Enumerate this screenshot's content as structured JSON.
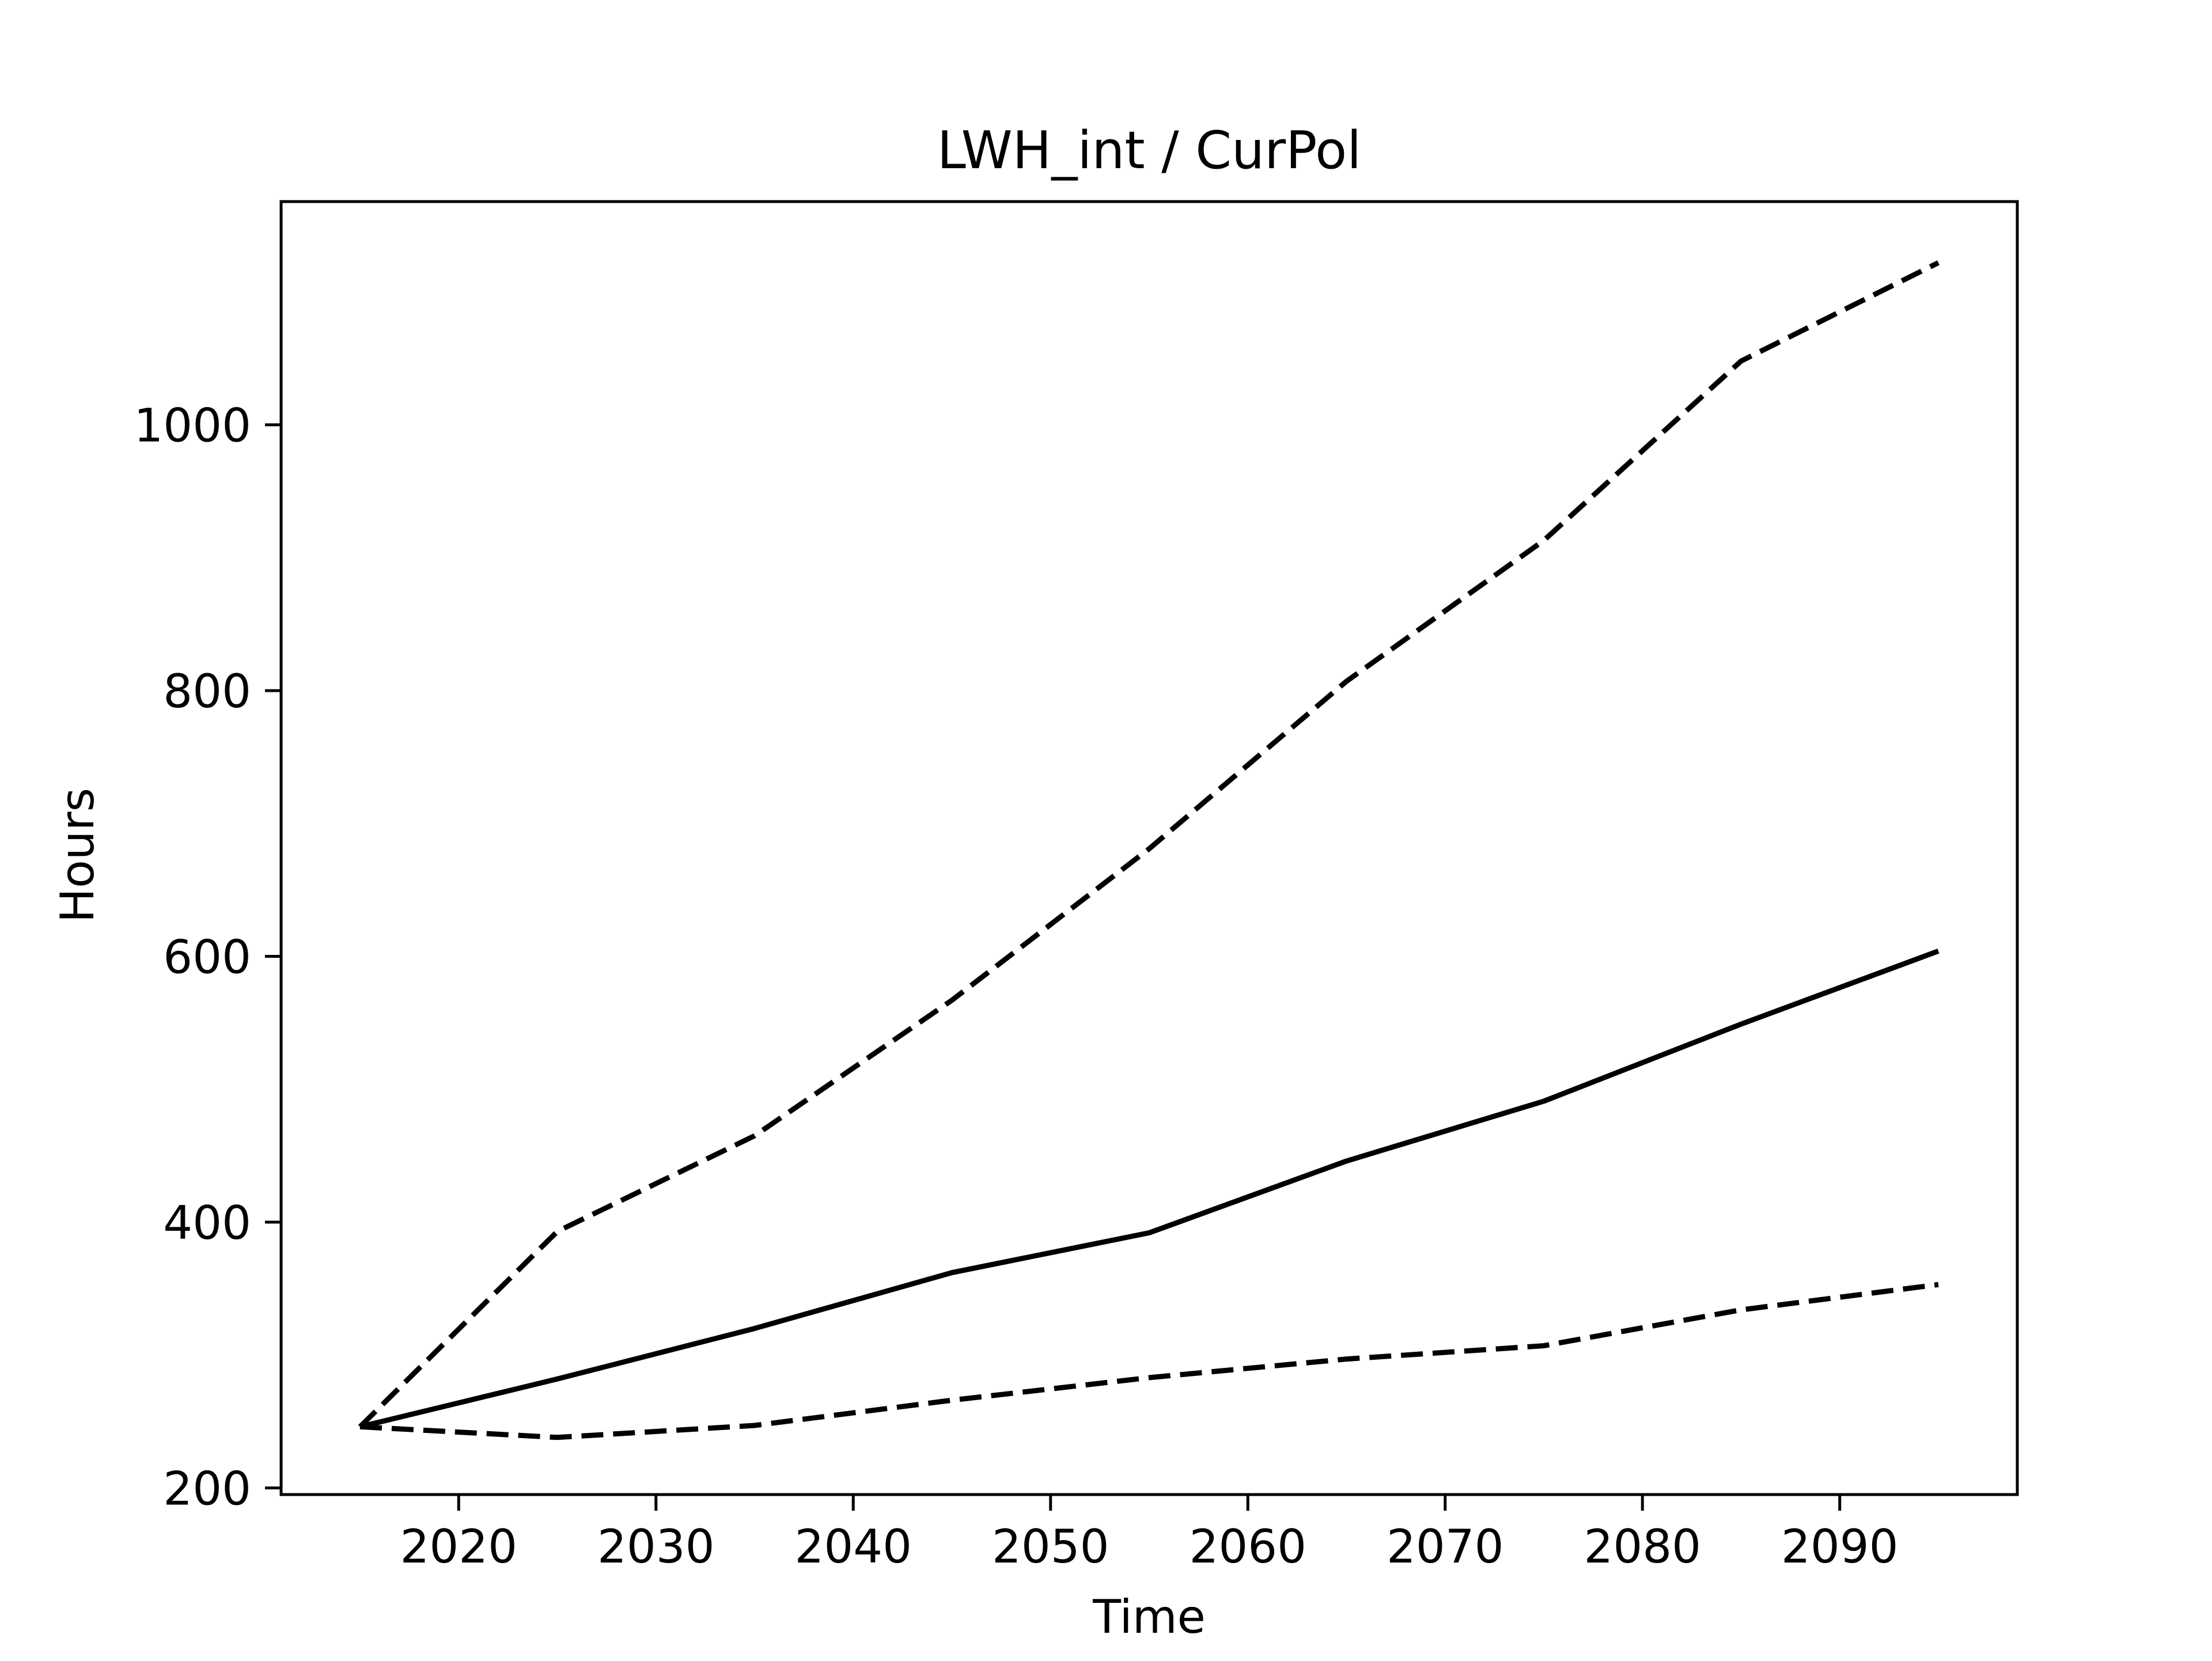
{
  "chart_data": {
    "type": "line",
    "title": "LWH_int / CurPol",
    "xlabel": "Time",
    "ylabel": "Hours",
    "xlim": [
      2011,
      2099
    ],
    "ylim": [
      195,
      1168
    ],
    "xticks": [
      2020,
      2030,
      2040,
      2050,
      2060,
      2070,
      2080,
      2090
    ],
    "yticks": [
      200,
      400,
      600,
      800,
      1000
    ],
    "grid": false,
    "legend": "none",
    "x": [
      2015,
      2025,
      2035,
      2045,
      2055,
      2065,
      2075,
      2085,
      2095
    ],
    "series": [
      {
        "style": "solid",
        "color": "#000000",
        "values": [
          246,
          282,
          320,
          362,
          392,
          446,
          491,
          549,
          604
        ]
      },
      {
        "style": "dashed",
        "color": "#000000",
        "values": [
          246,
          393,
          465,
          567,
          681,
          807,
          913,
          1048,
          1122
        ]
      },
      {
        "style": "dashed",
        "color": "#000000",
        "values": [
          246,
          238,
          247,
          266,
          283,
          297,
          307,
          334,
          353
        ]
      }
    ]
  }
}
